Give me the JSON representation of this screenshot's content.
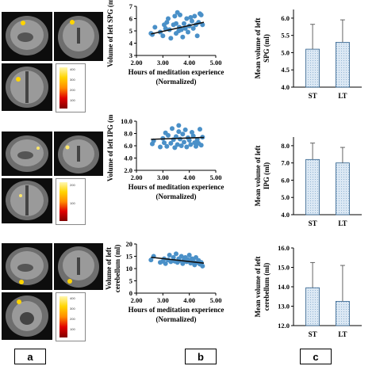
{
  "rows": [
    {
      "colorbar_ticks": [
        "400",
        "300",
        "200",
        "100"
      ],
      "scatter": {
        "ylabel": "Volume of left SPG (ml)",
        "xlabel_line1": "Hours of meditation experience",
        "xlabel_line2": "(Normalized)",
        "xticks": [
          "2.00",
          "3.00",
          "4.00",
          "5.00"
        ],
        "yticks": [
          "3",
          "4",
          "5",
          "6",
          "7"
        ],
        "xlim": [
          2.0,
          5.0
        ],
        "ylim": [
          3,
          7
        ],
        "points": [
          [
            2.55,
            4.8
          ],
          [
            2.6,
            4.7
          ],
          [
            2.7,
            5.3
          ],
          [
            2.9,
            4.9
          ],
          [
            3.0,
            4.6
          ],
          [
            3.05,
            5.5
          ],
          [
            3.1,
            5.2
          ],
          [
            3.15,
            5.7
          ],
          [
            3.2,
            6.0
          ],
          [
            3.25,
            5.1
          ],
          [
            3.3,
            4.4
          ],
          [
            3.4,
            5.5
          ],
          [
            3.45,
            6.2
          ],
          [
            3.5,
            4.8
          ],
          [
            3.5,
            5.6
          ],
          [
            3.55,
            6.5
          ],
          [
            3.6,
            5.0
          ],
          [
            3.62,
            5.3
          ],
          [
            3.65,
            6.3
          ],
          [
            3.7,
            5.1
          ],
          [
            3.75,
            4.5
          ],
          [
            3.8,
            5.6
          ],
          [
            3.85,
            5.2
          ],
          [
            3.9,
            6.0
          ],
          [
            3.95,
            4.9
          ],
          [
            4.0,
            5.4
          ],
          [
            4.05,
            6.1
          ],
          [
            4.1,
            5.8
          ],
          [
            4.15,
            5.2
          ],
          [
            4.2,
            6.2
          ],
          [
            4.25,
            5.5
          ],
          [
            4.3,
            4.6
          ],
          [
            4.35,
            5.7
          ],
          [
            4.4,
            6.4
          ],
          [
            4.45,
            6.3
          ],
          [
            4.5,
            5.5
          ]
        ],
        "fit": [
          [
            2.55,
            4.75
          ],
          [
            4.55,
            5.7
          ]
        ]
      },
      "bar": {
        "ylabel_line1": "Mean volume of left",
        "ylabel_line2": "SPG (ml)",
        "yticks": [
          "4.0",
          "4.5",
          "5.0",
          "5.5",
          "6.0"
        ],
        "ylim": [
          4.0,
          6.25
        ],
        "categories": [
          "ST",
          "LT"
        ],
        "values": [
          5.1,
          5.3
        ],
        "errors": [
          0.72,
          0.65
        ]
      }
    },
    {
      "colorbar_ticks": [
        "200",
        "100"
      ],
      "scatter": {
        "ylabel": "Volume of left IPG (ml)",
        "xlabel_line1": "Hours of meditation experience",
        "xlabel_line2": "(Normalized)",
        "xticks": [
          "2.00",
          "3.00",
          "4.00",
          "5.00"
        ],
        "yticks": [
          "2.0",
          "4.0",
          "6.0",
          "8.0",
          "10.0"
        ],
        "xlim": [
          2.0,
          5.0
        ],
        "ylim": [
          2.0,
          10.0
        ],
        "points": [
          [
            2.6,
            6.3
          ],
          [
            2.65,
            6.8
          ],
          [
            2.9,
            5.8
          ],
          [
            3.0,
            7.2
          ],
          [
            3.05,
            6.5
          ],
          [
            3.1,
            8.1
          ],
          [
            3.15,
            5.9
          ],
          [
            3.2,
            7.7
          ],
          [
            3.3,
            6.4
          ],
          [
            3.35,
            8.8
          ],
          [
            3.4,
            7.0
          ],
          [
            3.45,
            5.7
          ],
          [
            3.5,
            7.5
          ],
          [
            3.55,
            6.2
          ],
          [
            3.6,
            9.3
          ],
          [
            3.6,
            8.3
          ],
          [
            3.65,
            7.1
          ],
          [
            3.7,
            6.0
          ],
          [
            3.75,
            7.9
          ],
          [
            3.8,
            6.6
          ],
          [
            3.85,
            8.6
          ],
          [
            3.9,
            5.8
          ],
          [
            3.95,
            7.3
          ],
          [
            4.0,
            6.9
          ],
          [
            4.05,
            6.2
          ],
          [
            4.1,
            8.2
          ],
          [
            4.15,
            7.6
          ],
          [
            4.2,
            6.5
          ],
          [
            4.25,
            5.9
          ],
          [
            4.3,
            7.0
          ],
          [
            4.35,
            6.4
          ],
          [
            4.4,
            8.7
          ],
          [
            4.45,
            6.1
          ],
          [
            4.5,
            7.4
          ]
        ],
        "fit": [
          [
            2.55,
            7.05
          ],
          [
            4.55,
            7.35
          ]
        ]
      },
      "bar": {
        "ylabel_line1": "Mean volume of left",
        "ylabel_line2": "IPG (ml)",
        "yticks": [
          "4.0",
          "5.0",
          "6.0",
          "7.0",
          "8.0"
        ],
        "ylim": [
          4.0,
          8.5
        ],
        "categories": [
          "ST",
          "LT"
        ],
        "values": [
          7.2,
          7.0
        ],
        "errors": [
          0.95,
          0.9
        ]
      }
    },
    {
      "colorbar_ticks": [
        "400",
        "300",
        "200",
        "100"
      ],
      "scatter": {
        "ylabel_line1": "Volume of left",
        "ylabel_line2": "cerebellum (ml)",
        "xlabel_line1": "Hours of meditation experience",
        "xlabel_line2": "(Normalized)",
        "xticks": [
          "2.00",
          "3.00",
          "4.00",
          "5.00"
        ],
        "yticks": [
          "0",
          "5",
          "10",
          "15",
          "20"
        ],
        "xlim": [
          2.0,
          5.0
        ],
        "ylim": [
          0,
          20
        ],
        "points": [
          [
            2.55,
            13.5
          ],
          [
            2.65,
            15.0
          ],
          [
            2.9,
            12.5
          ],
          [
            3.0,
            13.0
          ],
          [
            3.05,
            14.0
          ],
          [
            3.1,
            12.0
          ],
          [
            3.2,
            13.5
          ],
          [
            3.25,
            15.5
          ],
          [
            3.3,
            12.8
          ],
          [
            3.4,
            14.5
          ],
          [
            3.45,
            13.0
          ],
          [
            3.5,
            16.0
          ],
          [
            3.55,
            12.5
          ],
          [
            3.6,
            14.0
          ],
          [
            3.62,
            13.2
          ],
          [
            3.7,
            15.0
          ],
          [
            3.75,
            12.0
          ],
          [
            3.8,
            13.5
          ],
          [
            3.85,
            14.5
          ],
          [
            3.9,
            12.8
          ],
          [
            3.95,
            13.6
          ],
          [
            4.0,
            15.5
          ],
          [
            4.05,
            12.2
          ],
          [
            4.1,
            14.0
          ],
          [
            4.15,
            13.0
          ],
          [
            4.2,
            11.5
          ],
          [
            4.25,
            14.5
          ],
          [
            4.3,
            12.5
          ],
          [
            4.35,
            13.3
          ],
          [
            4.4,
            11.8
          ],
          [
            4.45,
            12.5
          ],
          [
            4.5,
            11.0
          ]
        ],
        "fit": [
          [
            2.55,
            14.6
          ],
          [
            4.55,
            12.2
          ]
        ]
      },
      "bar": {
        "ylabel_line1": "Mean volume of left",
        "ylabel_line2": "cerebellum (ml)",
        "yticks": [
          "12.0",
          "13.0",
          "14.0",
          "15.0",
          "16.0"
        ],
        "ylim": [
          12.0,
          16.0
        ],
        "categories": [
          "ST",
          "LT"
        ],
        "values": [
          13.95,
          13.25
        ],
        "errors": [
          1.3,
          1.85
        ]
      }
    }
  ],
  "panel_labels": [
    "a",
    "b",
    "c"
  ],
  "colors": {
    "scatter_point": "#4a90c8",
    "fit_line": "#111111",
    "bar_fill": "#dbe8f4",
    "bar_stroke": "#2b5d8a"
  }
}
